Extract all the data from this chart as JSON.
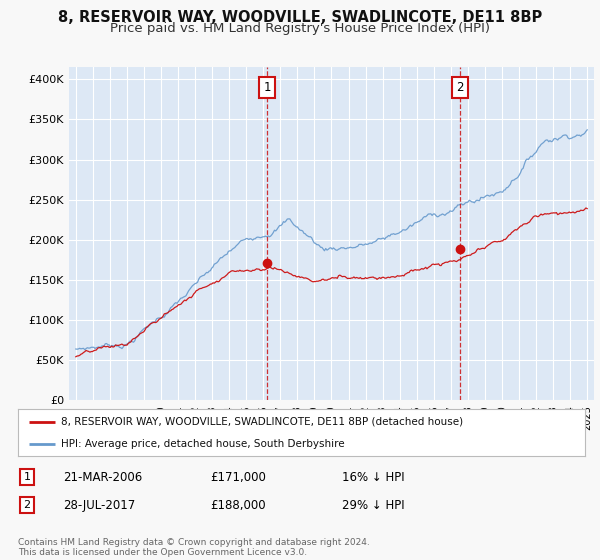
{
  "title": "8, RESERVOIR WAY, WOODVILLE, SWADLINCOTE, DE11 8BP",
  "subtitle": "Price paid vs. HM Land Registry's House Price Index (HPI)",
  "title_fontsize": 10.5,
  "subtitle_fontsize": 9.5,
  "background_color": "#f8f8f8",
  "plot_bg_color": "#dde8f5",
  "grid_color": "#ffffff",
  "ylabel_ticks": [
    "£0",
    "£50K",
    "£100K",
    "£150K",
    "£200K",
    "£250K",
    "£300K",
    "£350K",
    "£400K"
  ],
  "ytick_values": [
    0,
    50000,
    100000,
    150000,
    200000,
    250000,
    300000,
    350000,
    400000
  ],
  "ylim": [
    0,
    415000
  ],
  "xlim_start": 1994.6,
  "xlim_end": 2025.4,
  "sale1_x": 2006.22,
  "sale1_y": 171000,
  "sale2_x": 2017.56,
  "sale2_y": 188000,
  "sale1_date": "21-MAR-2006",
  "sale1_price": "£171,000",
  "sale1_hpi": "16% ↓ HPI",
  "sale2_date": "28-JUL-2017",
  "sale2_price": "£188,000",
  "sale2_hpi": "29% ↓ HPI",
  "legend_red_label": "8, RESERVOIR WAY, WOODVILLE, SWADLINCOTE, DE11 8BP (detached house)",
  "legend_blue_label": "HPI: Average price, detached house, South Derbyshire",
  "footer": "Contains HM Land Registry data © Crown copyright and database right 2024.\nThis data is licensed under the Open Government Licence v3.0.",
  "red_color": "#cc1111",
  "blue_color": "#6699cc",
  "marker_red": "#cc1111"
}
